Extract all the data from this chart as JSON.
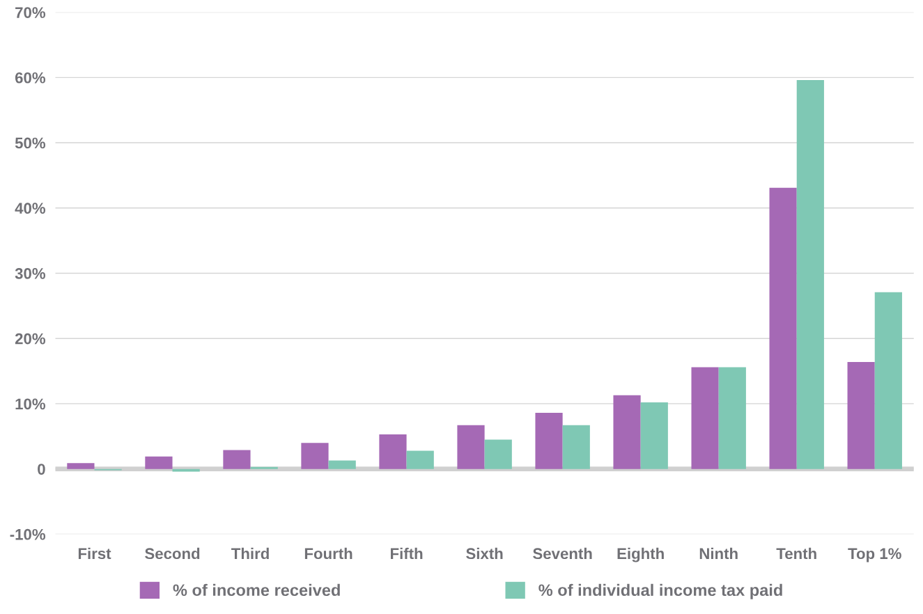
{
  "chart_data": {
    "type": "bar",
    "categories": [
      "First",
      "Second",
      "Third",
      "Fourth",
      "Fifth",
      "Sixth",
      "Seventh",
      "Eighth",
      "Ninth",
      "Tenth",
      "Top 1%"
    ],
    "series": [
      {
        "name": "% of income received",
        "color": "#a569b5",
        "values": [
          0.9,
          1.9,
          2.9,
          4.0,
          5.3,
          6.7,
          8.6,
          11.3,
          15.6,
          43.1,
          16.4
        ]
      },
      {
        "name": "% of individual income tax paid",
        "color": "#7fc8b4",
        "values": [
          -0.2,
          -0.4,
          0.3,
          1.3,
          2.8,
          4.5,
          6.7,
          10.2,
          15.6,
          59.6,
          27.1
        ]
      }
    ],
    "ylim": [
      -10,
      70
    ],
    "yticks": [
      {
        "value": -10,
        "label": "-10%"
      },
      0,
      {
        "value": 10,
        "label": "10%"
      },
      {
        "value": 20,
        "label": "20%"
      },
      {
        "value": 30,
        "label": "30%"
      },
      {
        "value": 40,
        "label": "40%"
      },
      {
        "value": 50,
        "label": "50%"
      },
      {
        "value": 60,
        "label": "60%"
      },
      {
        "value": 70,
        "label": "70%"
      }
    ],
    "ref_lines": [
      {
        "axis": "y",
        "value": 0,
        "color": "#d0d0d0"
      }
    ],
    "grid": "y",
    "legend": "bottom"
  }
}
